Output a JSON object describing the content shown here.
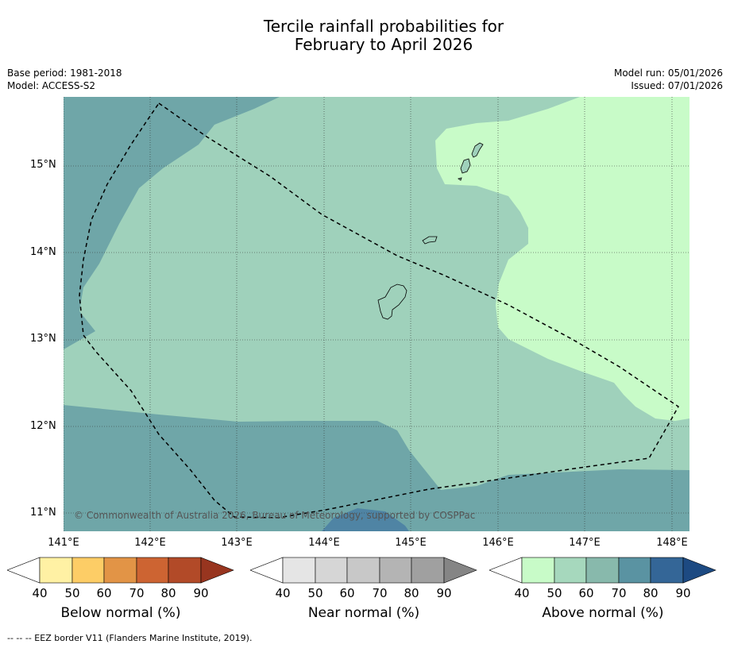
{
  "title_line1": "Tercile rainfall probabilities for",
  "title_line2": "February to April 2026",
  "meta": {
    "base_period": "Base period: 1981-2018",
    "model": "Model: ACCESS-S2",
    "model_run": "Model run: 05/01/2026",
    "issued": "Issued: 07/01/2026"
  },
  "map": {
    "lat_labels": [
      "15°N",
      "14°N",
      "13°N",
      "12°N",
      "11°N"
    ],
    "lon_labels": [
      "141°E",
      "142°E",
      "143°E",
      "144°E",
      "145°E",
      "146°E",
      "147°E",
      "148°E"
    ],
    "copyright": "© Commonwealth of Australia 2026, Bureau of Meteorology, supported by COSPPac",
    "colors": {
      "above_50": "#c8fbc8",
      "above_60": "#9fd1bb",
      "above_70": "#6fa6a8",
      "above_80": "#4f84a4"
    }
  },
  "legends": [
    {
      "label": "Below normal (%)",
      "ticks": [
        "40",
        "50",
        "60",
        "70",
        "80",
        "90"
      ],
      "colors": [
        "#ffffff",
        "#fff1a4",
        "#fdcd66",
        "#e29446",
        "#cd6432",
        "#b24a28",
        "#98351f"
      ]
    },
    {
      "label": "Near normal (%)",
      "ticks": [
        "40",
        "50",
        "60",
        "70",
        "80",
        "90"
      ],
      "colors": [
        "#ffffff",
        "#e5e5e5",
        "#d6d6d6",
        "#c8c8c8",
        "#b4b4b4",
        "#a0a0a0",
        "#858585"
      ]
    },
    {
      "label": "Above normal (%)",
      "ticks": [
        "40",
        "50",
        "60",
        "70",
        "80",
        "90"
      ],
      "colors": [
        "#ffffff",
        "#c8fbc8",
        "#a6d8bd",
        "#88b9ac",
        "#5a93a2",
        "#346697",
        "#1d4a82"
      ]
    }
  ],
  "footnote": "--  --  -- EEZ border V11 (Flanders Marine Institute, 2019)."
}
